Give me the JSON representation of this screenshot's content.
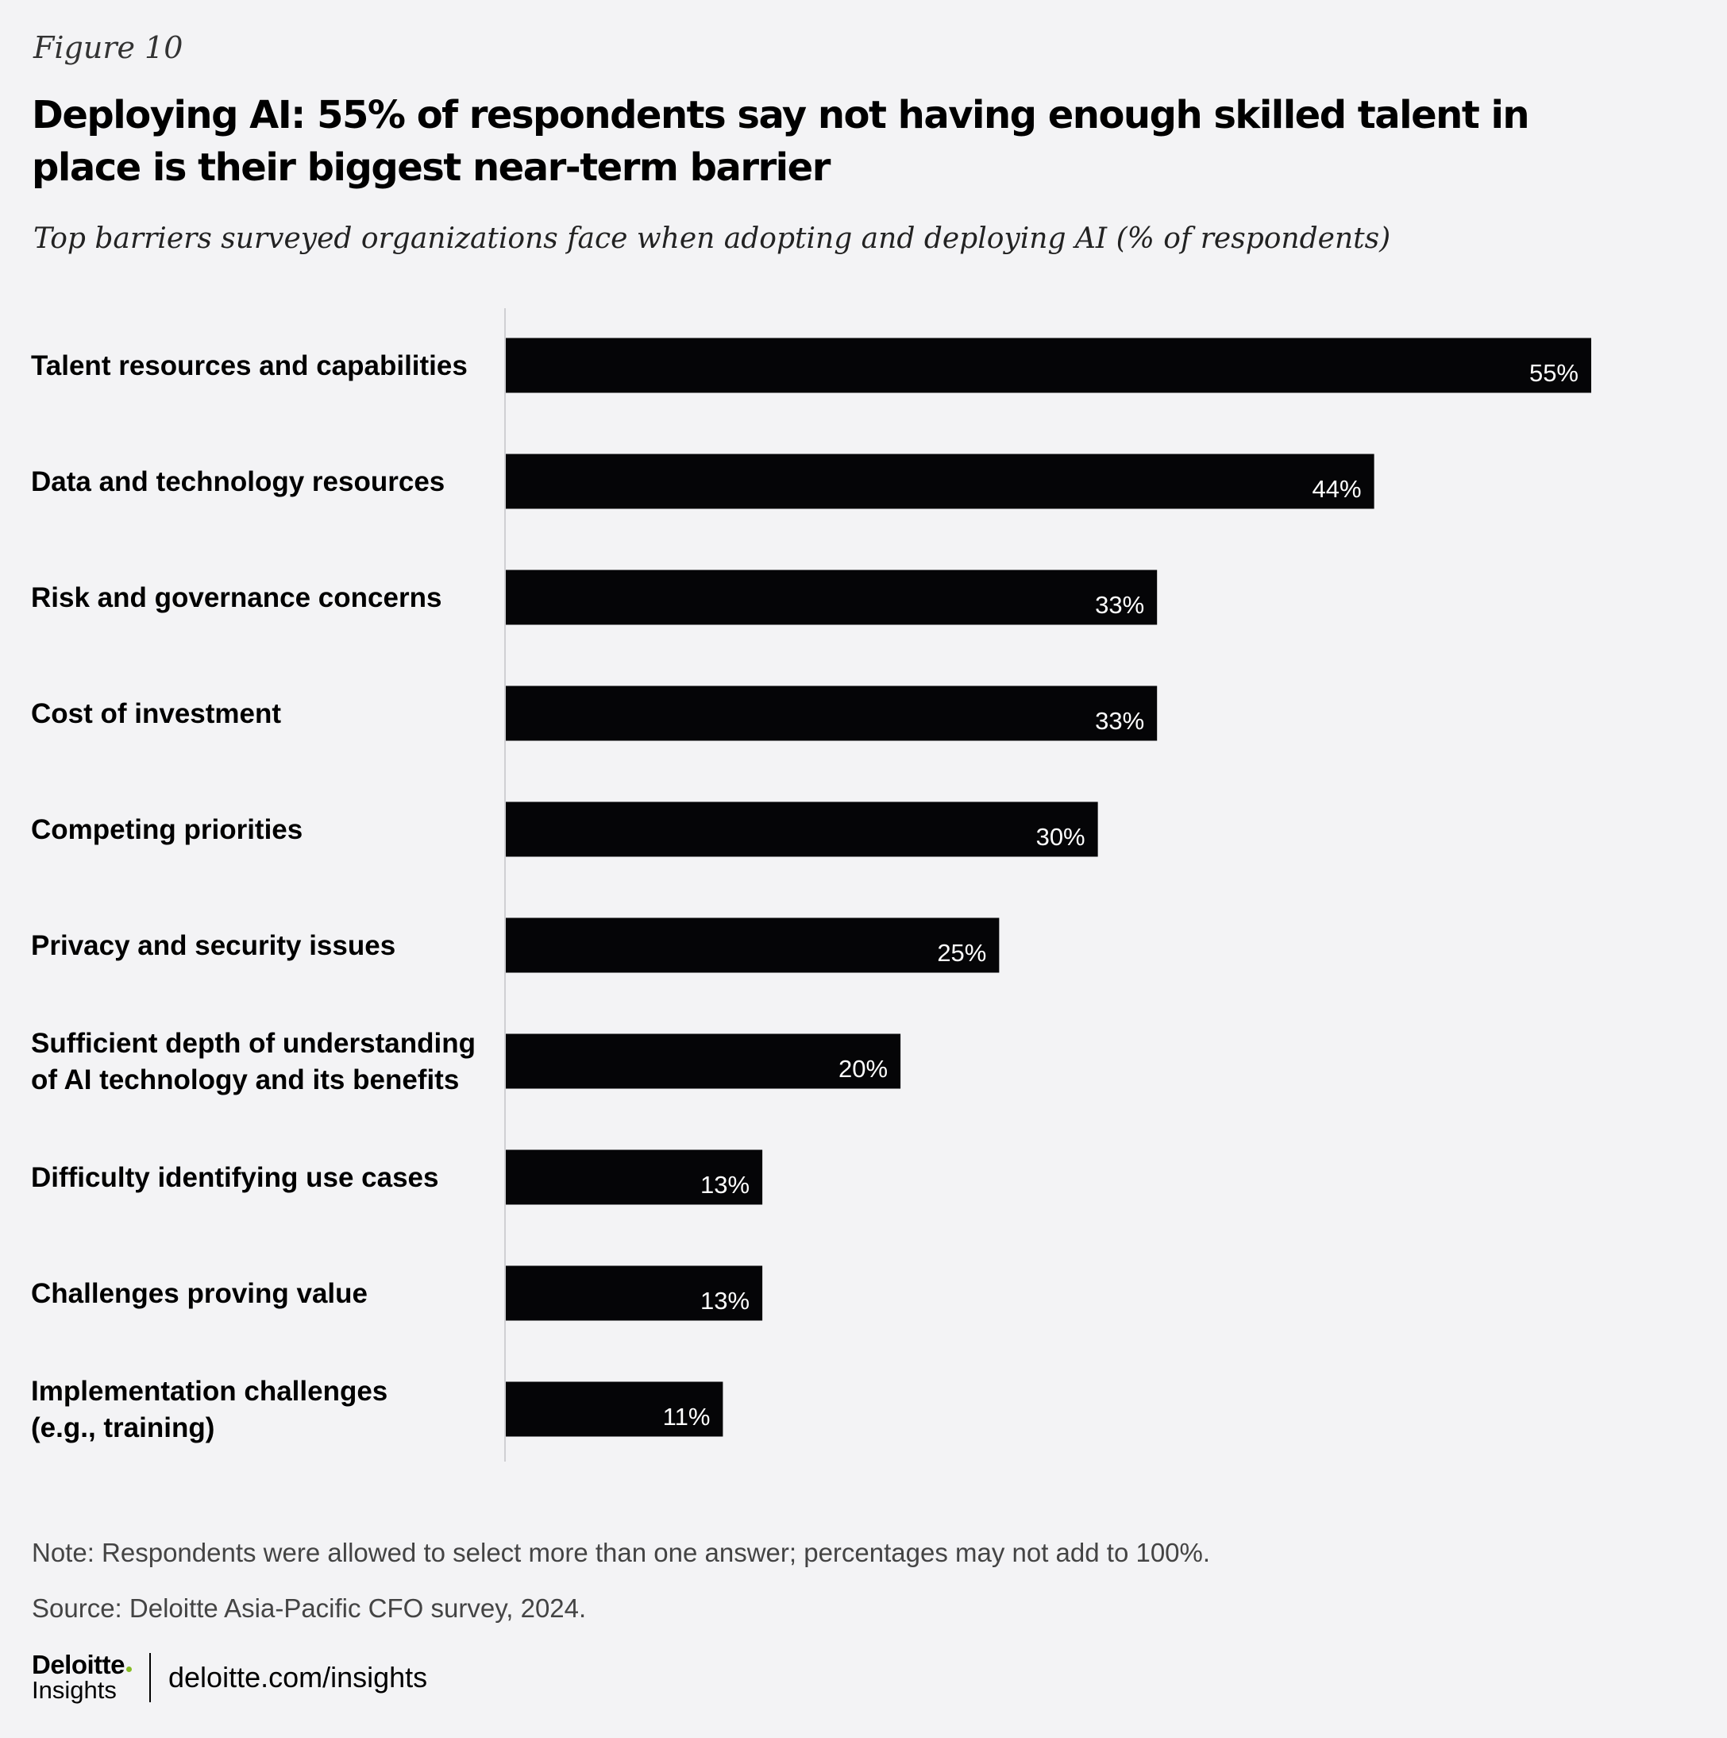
{
  "figure_label": "Figure 10",
  "chart_data": {
    "type": "bar",
    "orientation": "horizontal",
    "title": "Deploying AI: 55% of respondents say not having enough skilled talent in place is their biggest near-term barrier",
    "subtitle": "Top barriers surveyed organizations face when adopting and deploying AI (% of respondents)",
    "categories": [
      [
        "Talent resources and capabilities"
      ],
      [
        "Data and technology resources"
      ],
      [
        "Risk and governance concerns"
      ],
      [
        "Cost of investment"
      ],
      [
        "Competing priorities"
      ],
      [
        "Privacy and security issues"
      ],
      [
        "Sufficient depth of understanding",
        "of AI technology and its benefits"
      ],
      [
        "Difficulty identifying use cases"
      ],
      [
        "Challenges proving value"
      ],
      [
        "Implementation challenges",
        "(e.g., training)"
      ]
    ],
    "values": [
      55,
      44,
      33,
      33,
      30,
      25,
      20,
      13,
      13,
      11
    ],
    "value_labels": [
      "55%",
      "44%",
      "33%",
      "33%",
      "30%",
      "25%",
      "20%",
      "13%",
      "13%",
      "11%"
    ],
    "unit": "%",
    "xlim": [
      0,
      55
    ],
    "bar_color": "#050507",
    "value_label_color": "#ffffff",
    "grid": false,
    "legend": "none"
  },
  "note": "Note: Respondents were allowed to select more than one answer; percentages may not add to 100%.",
  "source": "Source: Deloitte Asia-Pacific CFO survey, 2024.",
  "footer": {
    "logo_name": "Deloitte",
    "logo_sub": "Insights",
    "logo_dot_color": "#86bc25",
    "url": "deloitte.com/insights"
  }
}
